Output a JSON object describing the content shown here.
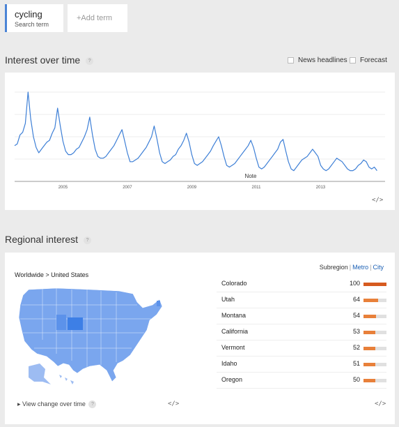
{
  "terms": {
    "main": {
      "name": "cycling",
      "sub": "Search term"
    },
    "add_label": "+Add term"
  },
  "interest": {
    "title": "Interest over time",
    "help": "?",
    "news_label": "News headlines",
    "forecast_label": "Forecast",
    "note_label": "Note",
    "embed": "</>",
    "line_color": "#3d7fd6"
  },
  "chart_data": {
    "type": "line",
    "title": "",
    "xlabel": "",
    "ylabel": "",
    "x_ticks": [
      "2005",
      "2007",
      "2009",
      "2011",
      "2013"
    ],
    "x": [
      2004.0,
      2004.083,
      2004.167,
      2004.25,
      2004.333,
      2004.417,
      2004.5,
      2004.583,
      2004.667,
      2004.75,
      2004.833,
      2004.917,
      2005.0,
      2005.083,
      2005.167,
      2005.25,
      2005.333,
      2005.417,
      2005.5,
      2005.583,
      2005.667,
      2005.75,
      2005.833,
      2005.917,
      2006.0,
      2006.083,
      2006.167,
      2006.25,
      2006.333,
      2006.417,
      2006.5,
      2006.583,
      2006.667,
      2006.75,
      2006.833,
      2006.917,
      2007.0,
      2007.083,
      2007.167,
      2007.25,
      2007.333,
      2007.417,
      2007.5,
      2007.583,
      2007.667,
      2007.75,
      2007.833,
      2007.917,
      2008.0,
      2008.083,
      2008.167,
      2008.25,
      2008.333,
      2008.417,
      2008.5,
      2008.583,
      2008.667,
      2008.75,
      2008.833,
      2008.917,
      2009.0,
      2009.083,
      2009.167,
      2009.25,
      2009.333,
      2009.417,
      2009.5,
      2009.583,
      2009.667,
      2009.75,
      2009.833,
      2009.917,
      2010.0,
      2010.083,
      2010.167,
      2010.25,
      2010.333,
      2010.417,
      2010.5,
      2010.583,
      2010.667,
      2010.75,
      2010.833,
      2010.917,
      2011.0,
      2011.083,
      2011.167,
      2011.25,
      2011.333,
      2011.417,
      2011.5,
      2011.583,
      2011.667,
      2011.75,
      2011.833,
      2011.917,
      2012.0,
      2012.083,
      2012.167,
      2012.25,
      2012.333,
      2012.417,
      2012.5,
      2012.583,
      2012.667,
      2012.75,
      2012.833,
      2012.917,
      2013.0,
      2013.083,
      2013.167,
      2013.25,
      2013.333,
      2013.417,
      2013.5,
      2013.583,
      2013.667,
      2013.75,
      2013.833,
      2013.917,
      2014.0,
      2014.083,
      2014.167,
      2014.25,
      2014.333,
      2014.417,
      2014.5,
      2014.583,
      2014.667,
      2014.75,
      2014.833,
      2014.917,
      2015.0,
      2015.083,
      2015.167,
      2015.25
    ],
    "values": [
      40,
      42,
      52,
      55,
      65,
      100,
      70,
      50,
      38,
      32,
      36,
      40,
      44,
      46,
      54,
      60,
      82,
      62,
      45,
      34,
      30,
      30,
      32,
      36,
      38,
      44,
      50,
      58,
      72,
      52,
      36,
      28,
      26,
      26,
      28,
      32,
      36,
      40,
      46,
      52,
      58,
      45,
      32,
      22,
      22,
      24,
      26,
      30,
      34,
      38,
      44,
      50,
      62,
      48,
      32,
      22,
      20,
      22,
      24,
      28,
      30,
      36,
      40,
      46,
      54,
      44,
      30,
      20,
      18,
      20,
      22,
      26,
      30,
      34,
      40,
      45,
      50,
      40,
      28,
      18,
      16,
      18,
      20,
      24,
      28,
      32,
      36,
      40,
      46,
      38,
      26,
      16,
      14,
      16,
      20,
      24,
      28,
      32,
      36,
      44,
      47,
      34,
      22,
      14,
      12,
      16,
      20,
      24,
      26,
      28,
      32,
      36,
      32,
      28,
      18,
      14,
      12,
      14,
      18,
      22,
      26,
      24,
      22,
      18,
      14,
      12,
      12,
      14,
      18,
      20,
      24,
      22,
      16,
      14,
      16,
      12
    ],
    "xlim": [
      2004.0,
      2015.5
    ],
    "ylim": [
      0,
      100
    ],
    "grid": true
  },
  "regional": {
    "title": "Regional interest",
    "help": "?",
    "crumb": "Worldwide > United States",
    "tab_subregion": "Subregion",
    "tab_sep": "|",
    "tab_metro": "Metro",
    "tab_city": "City",
    "view_change": "View change over time",
    "embed_map": "</>",
    "embed_list": "</>",
    "bar_color": "#e8803a",
    "top_bar_color": "#d65a1f",
    "map_color": "#7aa6ee",
    "highlight_color": "#3d7fe6",
    "rows": [
      {
        "name": "Colorado",
        "value": "100",
        "level": 1.0
      },
      {
        "name": "Utah",
        "value": "64",
        "level": 0.64
      },
      {
        "name": "Montana",
        "value": "54",
        "level": 0.54
      },
      {
        "name": "California",
        "value": "53",
        "level": 0.53
      },
      {
        "name": "Vermont",
        "value": "52",
        "level": 0.52
      },
      {
        "name": "Idaho",
        "value": "51",
        "level": 0.51
      },
      {
        "name": "Oregon",
        "value": "50",
        "level": 0.5
      }
    ]
  }
}
